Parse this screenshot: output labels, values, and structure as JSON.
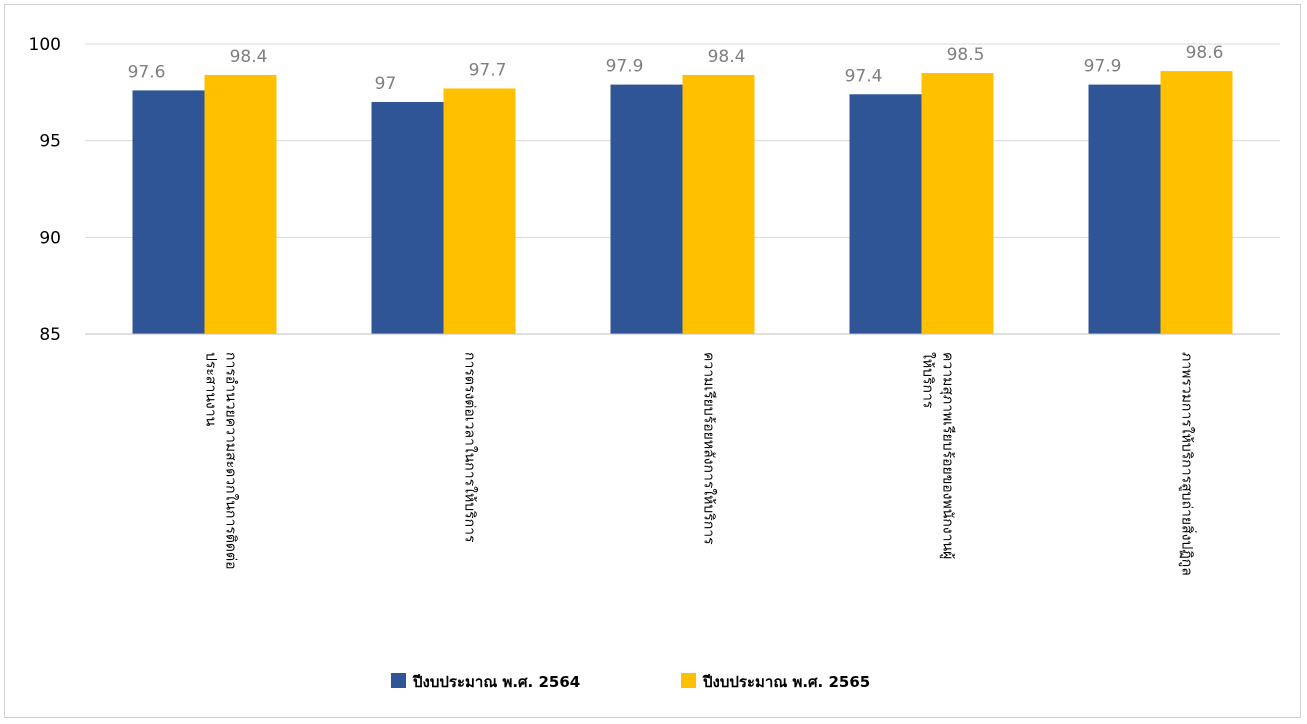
{
  "chart_data": {
    "type": "bar",
    "categories": [
      [
        "การอำนวยความสะดวกในการติดต่อ",
        "ประสานงาน"
      ],
      [
        "การตรงต่อเวลาในการให้บริการ"
      ],
      [
        "ความเรียบร้อยหลังการให้บริการ"
      ],
      [
        "ความสุภาพเรียบร้อยของพนักงานผู้",
        "ให้บริการ"
      ],
      [
        "ภาพรวมการให้บริการสูบถ่ายสิ่งปฏิกูล"
      ]
    ],
    "series": [
      {
        "name": "ปีงบประมาณ พ.ศ. 2564",
        "color": "#2f5597",
        "values": [
          97.6,
          97,
          97.9,
          97.4,
          97.9
        ]
      },
      {
        "name": "ปีงบประมาณ พ.ศ. 2565",
        "color": "#ffc000",
        "values": [
          98.4,
          97.7,
          98.4,
          98.5,
          98.6
        ]
      }
    ],
    "ylim": [
      85,
      100
    ],
    "yticks": [
      85,
      90,
      95,
      100
    ],
    "grid": true,
    "legend_position": "bottom"
  }
}
